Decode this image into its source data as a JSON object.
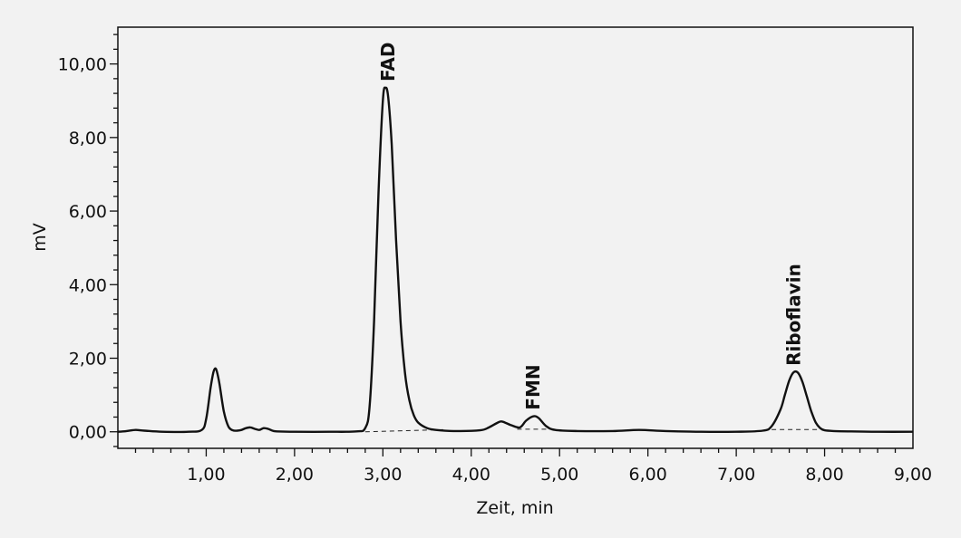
{
  "chart_data": {
    "type": "line",
    "title": "",
    "xlabel": "Zeit, min",
    "ylabel": "mV",
    "xlim": [
      0,
      9
    ],
    "ylim": [
      -0.45,
      11.0
    ],
    "x_ticks": [
      1,
      2,
      3,
      4,
      5,
      6,
      7,
      8,
      9
    ],
    "x_tick_labels": [
      "1,00",
      "2,00",
      "3,00",
      "4,00",
      "5,00",
      "6,00",
      "7,00",
      "8,00",
      "9,00"
    ],
    "y_ticks": [
      0,
      2,
      4,
      6,
      8,
      10
    ],
    "y_tick_labels": [
      "0,00",
      "2,00",
      "4,00",
      "6,00",
      "8,00",
      "10,00"
    ],
    "grid": false,
    "legend": "none",
    "line_color": "#111111",
    "background": "#f2f2f2",
    "series": [
      {
        "x": [
          0.0,
          0.1,
          0.2,
          0.3,
          0.5,
          0.8,
          0.95,
          1.0,
          1.05,
          1.08,
          1.1,
          1.12,
          1.15,
          1.2,
          1.25,
          1.3,
          1.35,
          1.4,
          1.45,
          1.5,
          1.55,
          1.6,
          1.65,
          1.7,
          1.75,
          1.8,
          2.0,
          2.4,
          2.7,
          2.8,
          2.85,
          2.9,
          2.95,
          3.0,
          3.03,
          3.06,
          3.1,
          3.15,
          3.2,
          3.25,
          3.3,
          3.35,
          3.4,
          3.5,
          3.6,
          3.8,
          4.1,
          4.2,
          4.3,
          4.35,
          4.45,
          4.55,
          4.62,
          4.7,
          4.76,
          4.85,
          4.95,
          5.2,
          5.6,
          5.9,
          6.2,
          6.6,
          7.0,
          7.3,
          7.4,
          7.5,
          7.55,
          7.6,
          7.65,
          7.7,
          7.75,
          7.8,
          7.85,
          7.9,
          7.95,
          8.0,
          8.1,
          8.3,
          8.6,
          9.0
        ],
        "y": [
          0.0,
          0.02,
          0.05,
          0.03,
          0.0,
          0.0,
          0.05,
          0.35,
          1.2,
          1.6,
          1.72,
          1.65,
          1.3,
          0.55,
          0.15,
          0.04,
          0.03,
          0.05,
          0.1,
          0.12,
          0.08,
          0.05,
          0.1,
          0.08,
          0.03,
          0.01,
          0.0,
          0.0,
          0.01,
          0.1,
          0.7,
          3.0,
          6.5,
          9.0,
          9.35,
          9.1,
          7.8,
          5.2,
          3.0,
          1.6,
          0.85,
          0.45,
          0.25,
          0.1,
          0.05,
          0.02,
          0.04,
          0.12,
          0.25,
          0.28,
          0.18,
          0.12,
          0.3,
          0.42,
          0.38,
          0.15,
          0.05,
          0.02,
          0.02,
          0.05,
          0.02,
          0.0,
          0.0,
          0.03,
          0.15,
          0.6,
          1.0,
          1.4,
          1.62,
          1.6,
          1.35,
          0.95,
          0.55,
          0.25,
          0.1,
          0.04,
          0.02,
          0.01,
          0.0,
          0.0
        ]
      }
    ],
    "baselines": [
      {
        "x": [
          2.8,
          3.7
        ],
        "y": [
          0.0,
          0.06
        ]
      },
      {
        "x": [
          4.52,
          4.85
        ],
        "y": [
          0.07,
          0.07
        ]
      },
      {
        "x": [
          7.4,
          7.95
        ],
        "y": [
          0.06,
          0.06
        ]
      }
    ],
    "annotations": [
      {
        "text": "FAD",
        "x": 3.06,
        "y": 9.35
      },
      {
        "text": "FMN",
        "x": 4.7,
        "y": 0.42
      },
      {
        "text": "Riboflavin",
        "x": 7.65,
        "y": 1.62
      }
    ]
  }
}
